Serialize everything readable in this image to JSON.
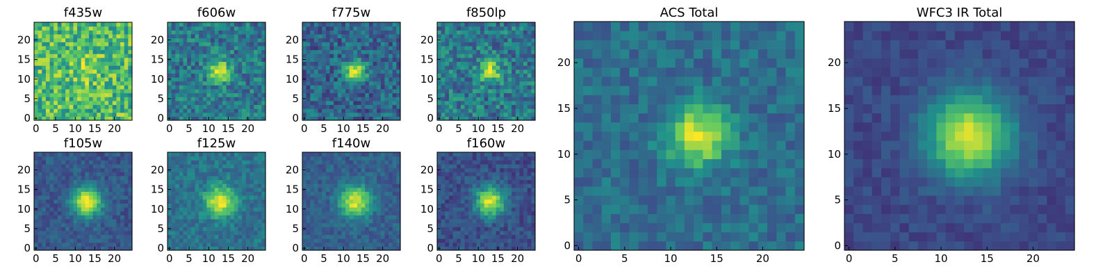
{
  "figure": {
    "colormap_colors": [
      "#440154",
      "#3b528b",
      "#21918c",
      "#5ec962",
      "#fde725"
    ],
    "frame_color": "#000000"
  },
  "chart_data": [
    {
      "type": "heatmap",
      "title": "f435w",
      "grid_size": 25,
      "source_center": [
        13,
        12
      ],
      "source_width": 2.0,
      "source_peak": 0.25,
      "background": 0.68,
      "noise": 0.24,
      "xlim": [
        0,
        24
      ],
      "ylim": [
        0,
        24
      ],
      "xticks": [
        "0",
        "5",
        "10",
        "15",
        "20"
      ],
      "yticks": [
        "0",
        "5",
        "10",
        "15",
        "20"
      ]
    },
    {
      "type": "heatmap",
      "title": "f606w",
      "grid_size": 25,
      "source_center": [
        13,
        12
      ],
      "source_width": 1.8,
      "source_peak": 0.65,
      "background": 0.4,
      "noise": 0.18,
      "xlim": [
        0,
        24
      ],
      "ylim": [
        0,
        24
      ],
      "xticks": [
        "0",
        "5",
        "10",
        "15",
        "20"
      ],
      "yticks": [
        "0",
        "5",
        "10",
        "15",
        "20"
      ]
    },
    {
      "type": "heatmap",
      "title": "f775w",
      "grid_size": 25,
      "source_center": [
        13,
        12
      ],
      "source_width": 1.8,
      "source_peak": 0.65,
      "background": 0.33,
      "noise": 0.17,
      "xlim": [
        0,
        24
      ],
      "ylim": [
        0,
        24
      ],
      "xticks": [
        "0",
        "5",
        "10",
        "15",
        "20"
      ],
      "yticks": [
        "0",
        "5",
        "10",
        "15",
        "20"
      ]
    },
    {
      "type": "heatmap",
      "title": "f850lp",
      "grid_size": 25,
      "source_center": [
        13,
        12
      ],
      "source_width": 1.9,
      "source_peak": 0.55,
      "background": 0.4,
      "noise": 0.19,
      "xlim": [
        0,
        24
      ],
      "ylim": [
        0,
        24
      ],
      "xticks": [
        "0",
        "5",
        "10",
        "15",
        "20"
      ],
      "yticks": [
        "0",
        "5",
        "10",
        "15",
        "20"
      ]
    },
    {
      "type": "heatmap",
      "title": "f105w",
      "grid_size": 25,
      "source_center": [
        13,
        12
      ],
      "source_width": 2.6,
      "source_peak": 0.72,
      "background": 0.28,
      "noise": 0.09,
      "xlim": [
        0,
        24
      ],
      "ylim": [
        0,
        24
      ],
      "xticks": [
        "0",
        "5",
        "10",
        "15",
        "20"
      ],
      "yticks": [
        "0",
        "5",
        "10",
        "15",
        "20"
      ]
    },
    {
      "type": "heatmap",
      "title": "f125w",
      "grid_size": 25,
      "source_center": [
        13,
        12
      ],
      "source_width": 2.6,
      "source_peak": 0.62,
      "background": 0.38,
      "noise": 0.11,
      "xlim": [
        0,
        24
      ],
      "ylim": [
        0,
        24
      ],
      "xticks": [
        "0",
        "5",
        "10",
        "15",
        "20"
      ],
      "yticks": [
        "0",
        "5",
        "10",
        "15",
        "20"
      ]
    },
    {
      "type": "heatmap",
      "title": "f140w",
      "grid_size": 25,
      "source_center": [
        13,
        12
      ],
      "source_width": 2.8,
      "source_peak": 0.65,
      "background": 0.3,
      "noise": 0.09,
      "xlim": [
        0,
        24
      ],
      "ylim": [
        0,
        24
      ],
      "xticks": [
        "0",
        "5",
        "10",
        "15",
        "20"
      ],
      "yticks": [
        "0",
        "5",
        "10",
        "15",
        "20"
      ]
    },
    {
      "type": "heatmap",
      "title": "f160w",
      "grid_size": 25,
      "source_center": [
        13,
        12
      ],
      "source_width": 2.6,
      "source_peak": 0.7,
      "background": 0.25,
      "noise": 0.1,
      "xlim": [
        0,
        24
      ],
      "ylim": [
        0,
        24
      ],
      "xticks": [
        "0",
        "5",
        "10",
        "15",
        "20"
      ],
      "yticks": [
        "0",
        "5",
        "10",
        "15",
        "20"
      ]
    },
    {
      "type": "heatmap",
      "title": "ACS Total",
      "grid_size": 25,
      "source_center": [
        13,
        12
      ],
      "source_width": 2.2,
      "source_peak": 0.62,
      "background": 0.36,
      "noise": 0.11,
      "xlim": [
        0,
        24
      ],
      "ylim": [
        0,
        24
      ],
      "xticks": [
        "0",
        "5",
        "10",
        "15",
        "20"
      ],
      "yticks": [
        "0",
        "5",
        "10",
        "15",
        "20"
      ]
    },
    {
      "type": "heatmap",
      "title": "WFC3 IR Total",
      "grid_size": 25,
      "source_center": [
        13,
        12
      ],
      "source_width": 3.2,
      "source_peak": 0.72,
      "background": 0.22,
      "noise": 0.06,
      "xlim": [
        0,
        24
      ],
      "ylim": [
        0,
        24
      ],
      "xticks": [
        "0",
        "5",
        "10",
        "15",
        "20"
      ],
      "yticks": [
        "0",
        "5",
        "10",
        "15",
        "20"
      ]
    }
  ]
}
